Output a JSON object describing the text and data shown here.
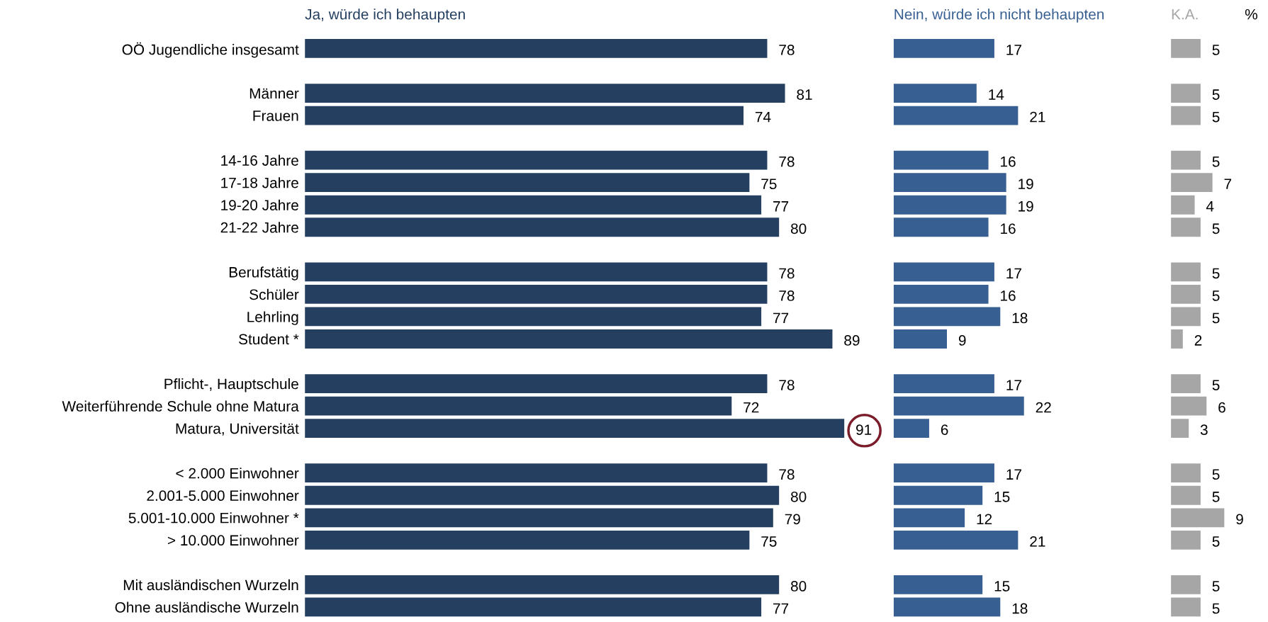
{
  "chart_data": [
    {
      "type": "bar",
      "orientation": "horizontal",
      "title": "Ja, würde ich behaupten",
      "categories": [
        "OÖ Jugendliche insgesamt",
        null,
        "Männer",
        "Frauen",
        null,
        "14-16 Jahre",
        "17-18 Jahre",
        "19-20 Jahre",
        "21-22 Jahre",
        null,
        "Berufstätig",
        "Schüler",
        "Lehrling",
        "Student *",
        null,
        "Pflicht-, Hauptschule",
        "Weiterführende Schule ohne Matura",
        "Matura, Universität",
        null,
        "< 2.000 Einwohner",
        "2.001-5.000 Einwohner",
        "5.001-10.000 Einwohner *",
        "> 10.000 Einwohner",
        null,
        "Mit ausländischen Wurzeln",
        "Ohne ausländische Wurzeln"
      ],
      "values": [
        78,
        null,
        81,
        74,
        null,
        78,
        75,
        77,
        80,
        null,
        78,
        78,
        77,
        89,
        null,
        78,
        72,
        91,
        null,
        78,
        80,
        79,
        75,
        null,
        80,
        77
      ],
      "color": "#243f60",
      "data_labels": true,
      "tick_labels": "y",
      "grid": false
    },
    {
      "type": "bar",
      "orientation": "horizontal",
      "title": "Nein, würde ich nicht behaupten",
      "values": [
        17,
        null,
        14,
        21,
        null,
        16,
        19,
        19,
        16,
        null,
        17,
        16,
        18,
        9,
        null,
        17,
        22,
        6,
        null,
        17,
        15,
        12,
        21,
        null,
        15,
        18
      ],
      "color": "#375f91",
      "data_labels": true,
      "tick_labels": false,
      "grid": false
    },
    {
      "type": "bar",
      "orientation": "horizontal",
      "title": "K.A.",
      "annotations": [
        "%"
      ],
      "values": [
        5,
        null,
        5,
        5,
        null,
        5,
        7,
        4,
        5,
        null,
        5,
        5,
        5,
        2,
        null,
        5,
        6,
        3,
        null,
        5,
        5,
        9,
        5,
        null,
        5,
        5
      ],
      "color": "#a6a6a6",
      "data_labels": true,
      "tick_labels": false,
      "grid": false
    }
  ]
}
